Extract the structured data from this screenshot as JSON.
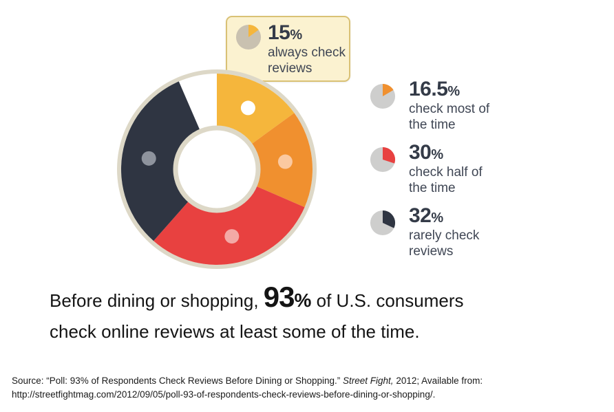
{
  "callout": {
    "value": 15,
    "percent": "15",
    "percent_sign": "%",
    "line1": "always check",
    "line2": "reviews",
    "pie_color": "#F5B63C",
    "pie_base": "#C9C1B0"
  },
  "legend": [
    {
      "value": 16.5,
      "percent": "16.5",
      "percent_sign": "%",
      "line1": "check most of",
      "line2": "the time",
      "pie_color": "#F0902F",
      "pie_base": "#CECECD"
    },
    {
      "value": 30,
      "percent": "30",
      "percent_sign": "%",
      "line1": "check half of",
      "line2": "the time",
      "pie_color": "#E84140",
      "pie_base": "#CECECD"
    },
    {
      "value": 32,
      "percent": "32",
      "percent_sign": "%",
      "line1": "rarely check",
      "line2": "reviews",
      "pie_color": "#2F3542",
      "pie_base": "#CECECD"
    }
  ],
  "headline": {
    "prefix": "Before dining or shopping, ",
    "big_number": "93",
    "big_sign": "%",
    "suffix": " of U.S. consumers",
    "line2": "check online reviews at least some of the time."
  },
  "source": {
    "prefix": "Source: “Poll: 93% of Respondents Check Reviews Before Dining or Shopping.” ",
    "italic": "Street Fight,",
    "suffix": " 2012; Available from:",
    "line2": "http://streetfightmag.com/2012/09/05/poll-93-of-respondents-check-reviews-before-dining-or-shopping/."
  },
  "chart_data": {
    "type": "donut",
    "title": "Before dining or shopping, 93% of U.S. consumers check online reviews at least some of the time.",
    "unit": "% of U.S. consumers",
    "total": 100,
    "start_angle_deg": 0,
    "direction": "clockwise",
    "legend_position": "right",
    "ring_color": "#DDD8C7",
    "segments": [
      {
        "label": "always check reviews",
        "value": 15,
        "color": "#F5B63C",
        "dot_color": "#FFFFFF"
      },
      {
        "label": "check most of the time",
        "value": 16.5,
        "color": "#F0902F",
        "dot_color": "#FBC9A0"
      },
      {
        "label": "check half of the time",
        "value": 30,
        "color": "#E84140",
        "dot_color": "#F3A9A6"
      },
      {
        "label": "rarely check reviews",
        "value": 32,
        "color": "#2F3542",
        "dot_color": "#8E939D"
      },
      {
        "label": "",
        "value": 6.5,
        "color": "#FFFFFF",
        "dot_color": null
      }
    ]
  },
  "colors": {
    "yellow": "#F5B63C",
    "orange": "#F0902F",
    "red": "#E84140",
    "dark_navy": "#2F3542",
    "ring_cream": "#DDD8C7",
    "callout_bg": "#FBF2D0",
    "callout_border": "#D9C175",
    "callout_pointer": "#EFAE36",
    "text_dark": "#343B48"
  }
}
